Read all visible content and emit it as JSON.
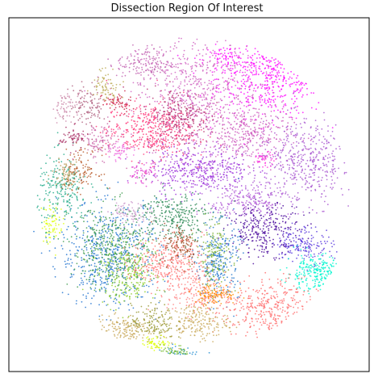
{
  "chart_data": {
    "type": "scatter",
    "title": "Dissection Region Of Interest",
    "xlabel": "",
    "ylabel": "",
    "axes": {
      "ticks": false,
      "grid": false,
      "frame": true
    },
    "legend": "none",
    "clusters": [
      {
        "color": "#ff00ff",
        "cx": 0.73,
        "cy": 0.83,
        "sx": 0.075,
        "sy": 0.055,
        "n": 520
      },
      {
        "color": "#ff00ff",
        "cx": 0.6,
        "cy": 0.88,
        "sx": 0.03,
        "sy": 0.02,
        "n": 80
      },
      {
        "color": "#d060c0",
        "cx": 0.53,
        "cy": 0.78,
        "sx": 0.085,
        "sy": 0.085,
        "n": 650
      },
      {
        "color": "#cc55bb",
        "cx": 0.66,
        "cy": 0.67,
        "sx": 0.06,
        "sy": 0.04,
        "n": 300
      },
      {
        "color": "#c060b0",
        "cx": 0.38,
        "cy": 0.87,
        "sx": 0.04,
        "sy": 0.025,
        "n": 160
      },
      {
        "color": "#b83070",
        "cx": 0.47,
        "cy": 0.72,
        "sx": 0.045,
        "sy": 0.04,
        "n": 280
      },
      {
        "color": "#ff3377",
        "cx": 0.39,
        "cy": 0.68,
        "sx": 0.06,
        "sy": 0.04,
        "n": 380
      },
      {
        "color": "#9b30d9",
        "cx": 0.53,
        "cy": 0.57,
        "sx": 0.07,
        "sy": 0.035,
        "n": 420
      },
      {
        "color": "#a855d0",
        "cx": 0.82,
        "cy": 0.59,
        "sx": 0.07,
        "sy": 0.06,
        "n": 480
      },
      {
        "color": "#b05ad6",
        "cx": 0.66,
        "cy": 0.48,
        "sx": 0.05,
        "sy": 0.03,
        "n": 220
      },
      {
        "color": "#440099",
        "cx": 0.71,
        "cy": 0.4,
        "sx": 0.05,
        "sy": 0.035,
        "n": 280
      },
      {
        "color": "#5533dd",
        "cx": 0.82,
        "cy": 0.36,
        "sx": 0.04,
        "sy": 0.025,
        "n": 160
      },
      {
        "color": "#00f5d0",
        "cx": 0.85,
        "cy": 0.28,
        "sx": 0.04,
        "sy": 0.025,
        "n": 260
      },
      {
        "color": "#1a6fd0",
        "cx": 0.28,
        "cy": 0.33,
        "sx": 0.07,
        "sy": 0.075,
        "n": 560
      },
      {
        "color": "#3a9a4a",
        "cx": 0.29,
        "cy": 0.35,
        "sx": 0.06,
        "sy": 0.06,
        "n": 400
      },
      {
        "color": "#88cc22",
        "cx": 0.33,
        "cy": 0.27,
        "sx": 0.04,
        "sy": 0.04,
        "n": 220
      },
      {
        "color": "#2e8b57",
        "cx": 0.46,
        "cy": 0.44,
        "sx": 0.05,
        "sy": 0.035,
        "n": 280
      },
      {
        "color": "#2277cc",
        "cx": 0.58,
        "cy": 0.31,
        "sx": 0.03,
        "sy": 0.055,
        "n": 260
      },
      {
        "color": "#7ab030",
        "cx": 0.57,
        "cy": 0.33,
        "sx": 0.025,
        "sy": 0.045,
        "n": 150
      },
      {
        "color": "#ff7070",
        "cx": 0.44,
        "cy": 0.31,
        "sx": 0.05,
        "sy": 0.035,
        "n": 320
      },
      {
        "color": "#ff6a6a",
        "cx": 0.72,
        "cy": 0.18,
        "sx": 0.07,
        "sy": 0.04,
        "n": 380
      },
      {
        "color": "#ff8080",
        "cx": 0.52,
        "cy": 0.22,
        "sx": 0.04,
        "sy": 0.03,
        "n": 160
      },
      {
        "color": "#a04a20",
        "cx": 0.48,
        "cy": 0.36,
        "sx": 0.025,
        "sy": 0.03,
        "n": 120
      },
      {
        "color": "#ff8c00",
        "cx": 0.57,
        "cy": 0.22,
        "sx": 0.03,
        "sy": 0.015,
        "n": 110
      },
      {
        "color": "#c8a858",
        "cx": 0.52,
        "cy": 0.14,
        "sx": 0.045,
        "sy": 0.025,
        "n": 200
      },
      {
        "color": "#c8a858",
        "cx": 0.32,
        "cy": 0.12,
        "sx": 0.04,
        "sy": 0.02,
        "n": 160
      },
      {
        "color": "#999933",
        "cx": 0.4,
        "cy": 0.14,
        "sx": 0.03,
        "sy": 0.025,
        "n": 140
      },
      {
        "color": "#ddff00",
        "cx": 0.41,
        "cy": 0.08,
        "sx": 0.02,
        "sy": 0.01,
        "n": 60
      },
      {
        "color": "#ddff00",
        "cx": 0.12,
        "cy": 0.42,
        "sx": 0.015,
        "sy": 0.03,
        "n": 70
      },
      {
        "color": "#1a8ad0",
        "cx": 0.47,
        "cy": 0.04,
        "sx": 0.035,
        "sy": 0.015,
        "n": 120
      },
      {
        "color": "#77bb33",
        "cx": 0.46,
        "cy": 0.05,
        "sx": 0.02,
        "sy": 0.012,
        "n": 70
      },
      {
        "color": "#22aa88",
        "cx": 0.15,
        "cy": 0.51,
        "sx": 0.035,
        "sy": 0.05,
        "n": 220
      },
      {
        "color": "#bb9955",
        "cx": 0.16,
        "cy": 0.56,
        "sx": 0.02,
        "sy": 0.02,
        "n": 70
      },
      {
        "color": "#b85a2a",
        "cx": 0.2,
        "cy": 0.57,
        "sx": 0.025,
        "sy": 0.03,
        "n": 110
      },
      {
        "color": "#cc66aa",
        "cx": 0.25,
        "cy": 0.65,
        "sx": 0.03,
        "sy": 0.025,
        "n": 110
      },
      {
        "color": "#b06080",
        "cx": 0.22,
        "cy": 0.75,
        "sx": 0.025,
        "sy": 0.03,
        "n": 110
      },
      {
        "color": "#aa3366",
        "cx": 0.18,
        "cy": 0.66,
        "sx": 0.02,
        "sy": 0.015,
        "n": 60
      },
      {
        "color": "#cc2244",
        "cx": 0.3,
        "cy": 0.76,
        "sx": 0.02,
        "sy": 0.015,
        "n": 60
      },
      {
        "color": "#e040d0",
        "cx": 0.37,
        "cy": 0.56,
        "sx": 0.02,
        "sy": 0.015,
        "n": 60
      },
      {
        "color": "#ee66dd",
        "cx": 0.31,
        "cy": 0.62,
        "sx": 0.015,
        "sy": 0.012,
        "n": 50
      },
      {
        "color": "#ff33dd",
        "cx": 0.71,
        "cy": 0.6,
        "sx": 0.015,
        "sy": 0.01,
        "n": 40
      },
      {
        "color": "#bbaa55",
        "cx": 0.27,
        "cy": 0.81,
        "sx": 0.02,
        "sy": 0.025,
        "n": 70
      },
      {
        "color": "#cc88aa",
        "cx": 0.16,
        "cy": 0.75,
        "sx": 0.02,
        "sy": 0.02,
        "n": 60
      },
      {
        "color": "#cc99cc",
        "cx": 0.34,
        "cy": 0.45,
        "sx": 0.03,
        "sy": 0.015,
        "n": 80
      }
    ]
  }
}
